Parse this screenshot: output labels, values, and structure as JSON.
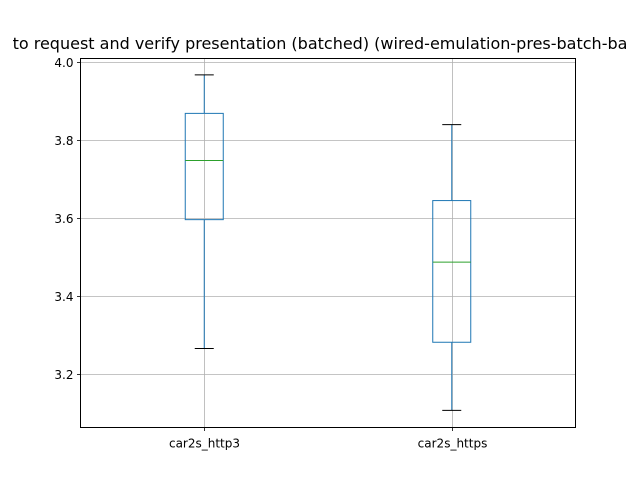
{
  "chart_data": {
    "type": "box",
    "title": "to request and verify presentation (batched) (wired-emulation-pres-batch-ba",
    "xlabel": "",
    "ylabel": "",
    "ylim": [
      3.062,
      4.01
    ],
    "yticks": [
      3.2,
      3.4,
      3.6,
      3.8,
      4.0
    ],
    "ytick_labels": [
      "3.2",
      "3.4",
      "3.6",
      "3.8",
      "4.0"
    ],
    "grid": true,
    "categories": [
      "car2s_http3",
      "car2s_https"
    ],
    "boxes": [
      {
        "name": "car2s_http3",
        "whisker_low": 3.265,
        "q1": 3.596,
        "median": 3.748,
        "q3": 3.869,
        "whisker_high": 3.968
      },
      {
        "name": "car2s_https",
        "whisker_low": 3.106,
        "q1": 3.281,
        "median": 3.487,
        "q3": 3.645,
        "whisker_high": 3.84
      }
    ],
    "colors": {
      "box": "#1f77b4",
      "median": "#2ca02c",
      "whisker_cap": "#000000",
      "grid": "#b0b0b0"
    }
  }
}
